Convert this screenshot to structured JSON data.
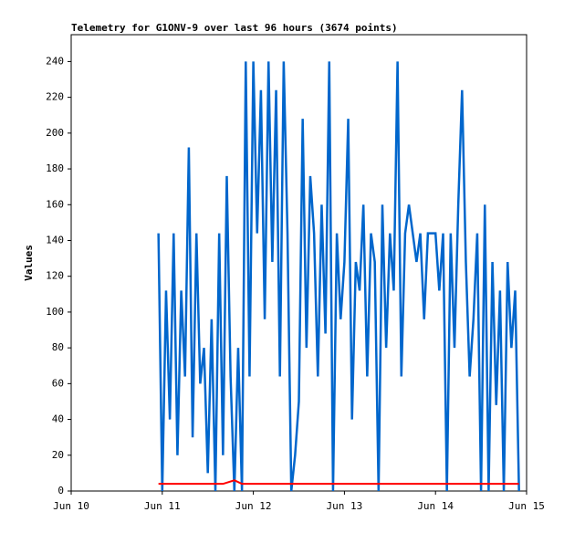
{
  "chart_data": {
    "type": "line",
    "title": "Telemetry for G1ONV-9 over last 96 hours (3674 points)",
    "ylabel": "Values",
    "xlim": [
      0,
      120
    ],
    "xticks": [
      {
        "value": 0,
        "label": "Jun 10"
      },
      {
        "value": 24,
        "label": "Jun 11"
      },
      {
        "value": 48,
        "label": "Jun 12"
      },
      {
        "value": 72,
        "label": "Jun 13"
      },
      {
        "value": 96,
        "label": "Jun 14"
      },
      {
        "value": 120,
        "label": "Jun 15"
      }
    ],
    "ylim": [
      0,
      255
    ],
    "yticks": [
      0,
      20,
      40,
      60,
      80,
      100,
      120,
      140,
      160,
      180,
      200,
      220,
      240
    ],
    "series": [
      {
        "color": "#0066cc",
        "x": [
          23,
          24,
          25,
          26,
          27,
          28,
          29,
          30,
          31,
          32,
          33,
          34,
          35,
          36,
          37,
          38,
          39,
          40,
          41,
          42,
          43,
          44,
          45,
          46,
          47,
          48,
          49,
          50,
          51,
          52,
          53,
          54,
          55,
          56,
          57,
          58,
          59,
          60,
          61,
          62,
          63,
          64,
          65,
          66,
          67,
          68,
          69,
          70,
          71,
          72,
          73,
          74,
          75,
          76,
          77,
          78,
          79,
          80,
          81,
          82,
          83,
          84,
          85,
          86,
          87,
          88,
          89,
          90,
          91,
          92,
          93,
          94,
          95,
          96,
          97,
          98,
          99,
          100,
          101,
          102,
          103,
          104,
          105,
          106,
          107,
          108,
          109,
          110,
          111,
          112,
          113,
          114,
          115,
          116,
          117,
          118
        ],
        "values": [
          144,
          0,
          112,
          40,
          144,
          20,
          112,
          64,
          192,
          30,
          144,
          60,
          80,
          10,
          96,
          0,
          144,
          20,
          176,
          64,
          0,
          80,
          0,
          240,
          64,
          240,
          144,
          224,
          96,
          240,
          128,
          224,
          64,
          240,
          144,
          0,
          20,
          50,
          208,
          80,
          176,
          144,
          64,
          160,
          88,
          240,
          0,
          144,
          96,
          128,
          208,
          40,
          128,
          112,
          160,
          64,
          144,
          128,
          0,
          160,
          80,
          144,
          112,
          240,
          64,
          144,
          160,
          144,
          128,
          144,
          96,
          144,
          144,
          144,
          112,
          144,
          0,
          144,
          80,
          160,
          224,
          128,
          64,
          96,
          144,
          0,
          160,
          0,
          128,
          48,
          112,
          0,
          128,
          80,
          112,
          0
        ]
      },
      {
        "color": "#ff0000",
        "x": [
          23,
          40,
          43,
          44,
          45,
          118
        ],
        "values": [
          4,
          4,
          6,
          5,
          4,
          4
        ]
      }
    ]
  }
}
